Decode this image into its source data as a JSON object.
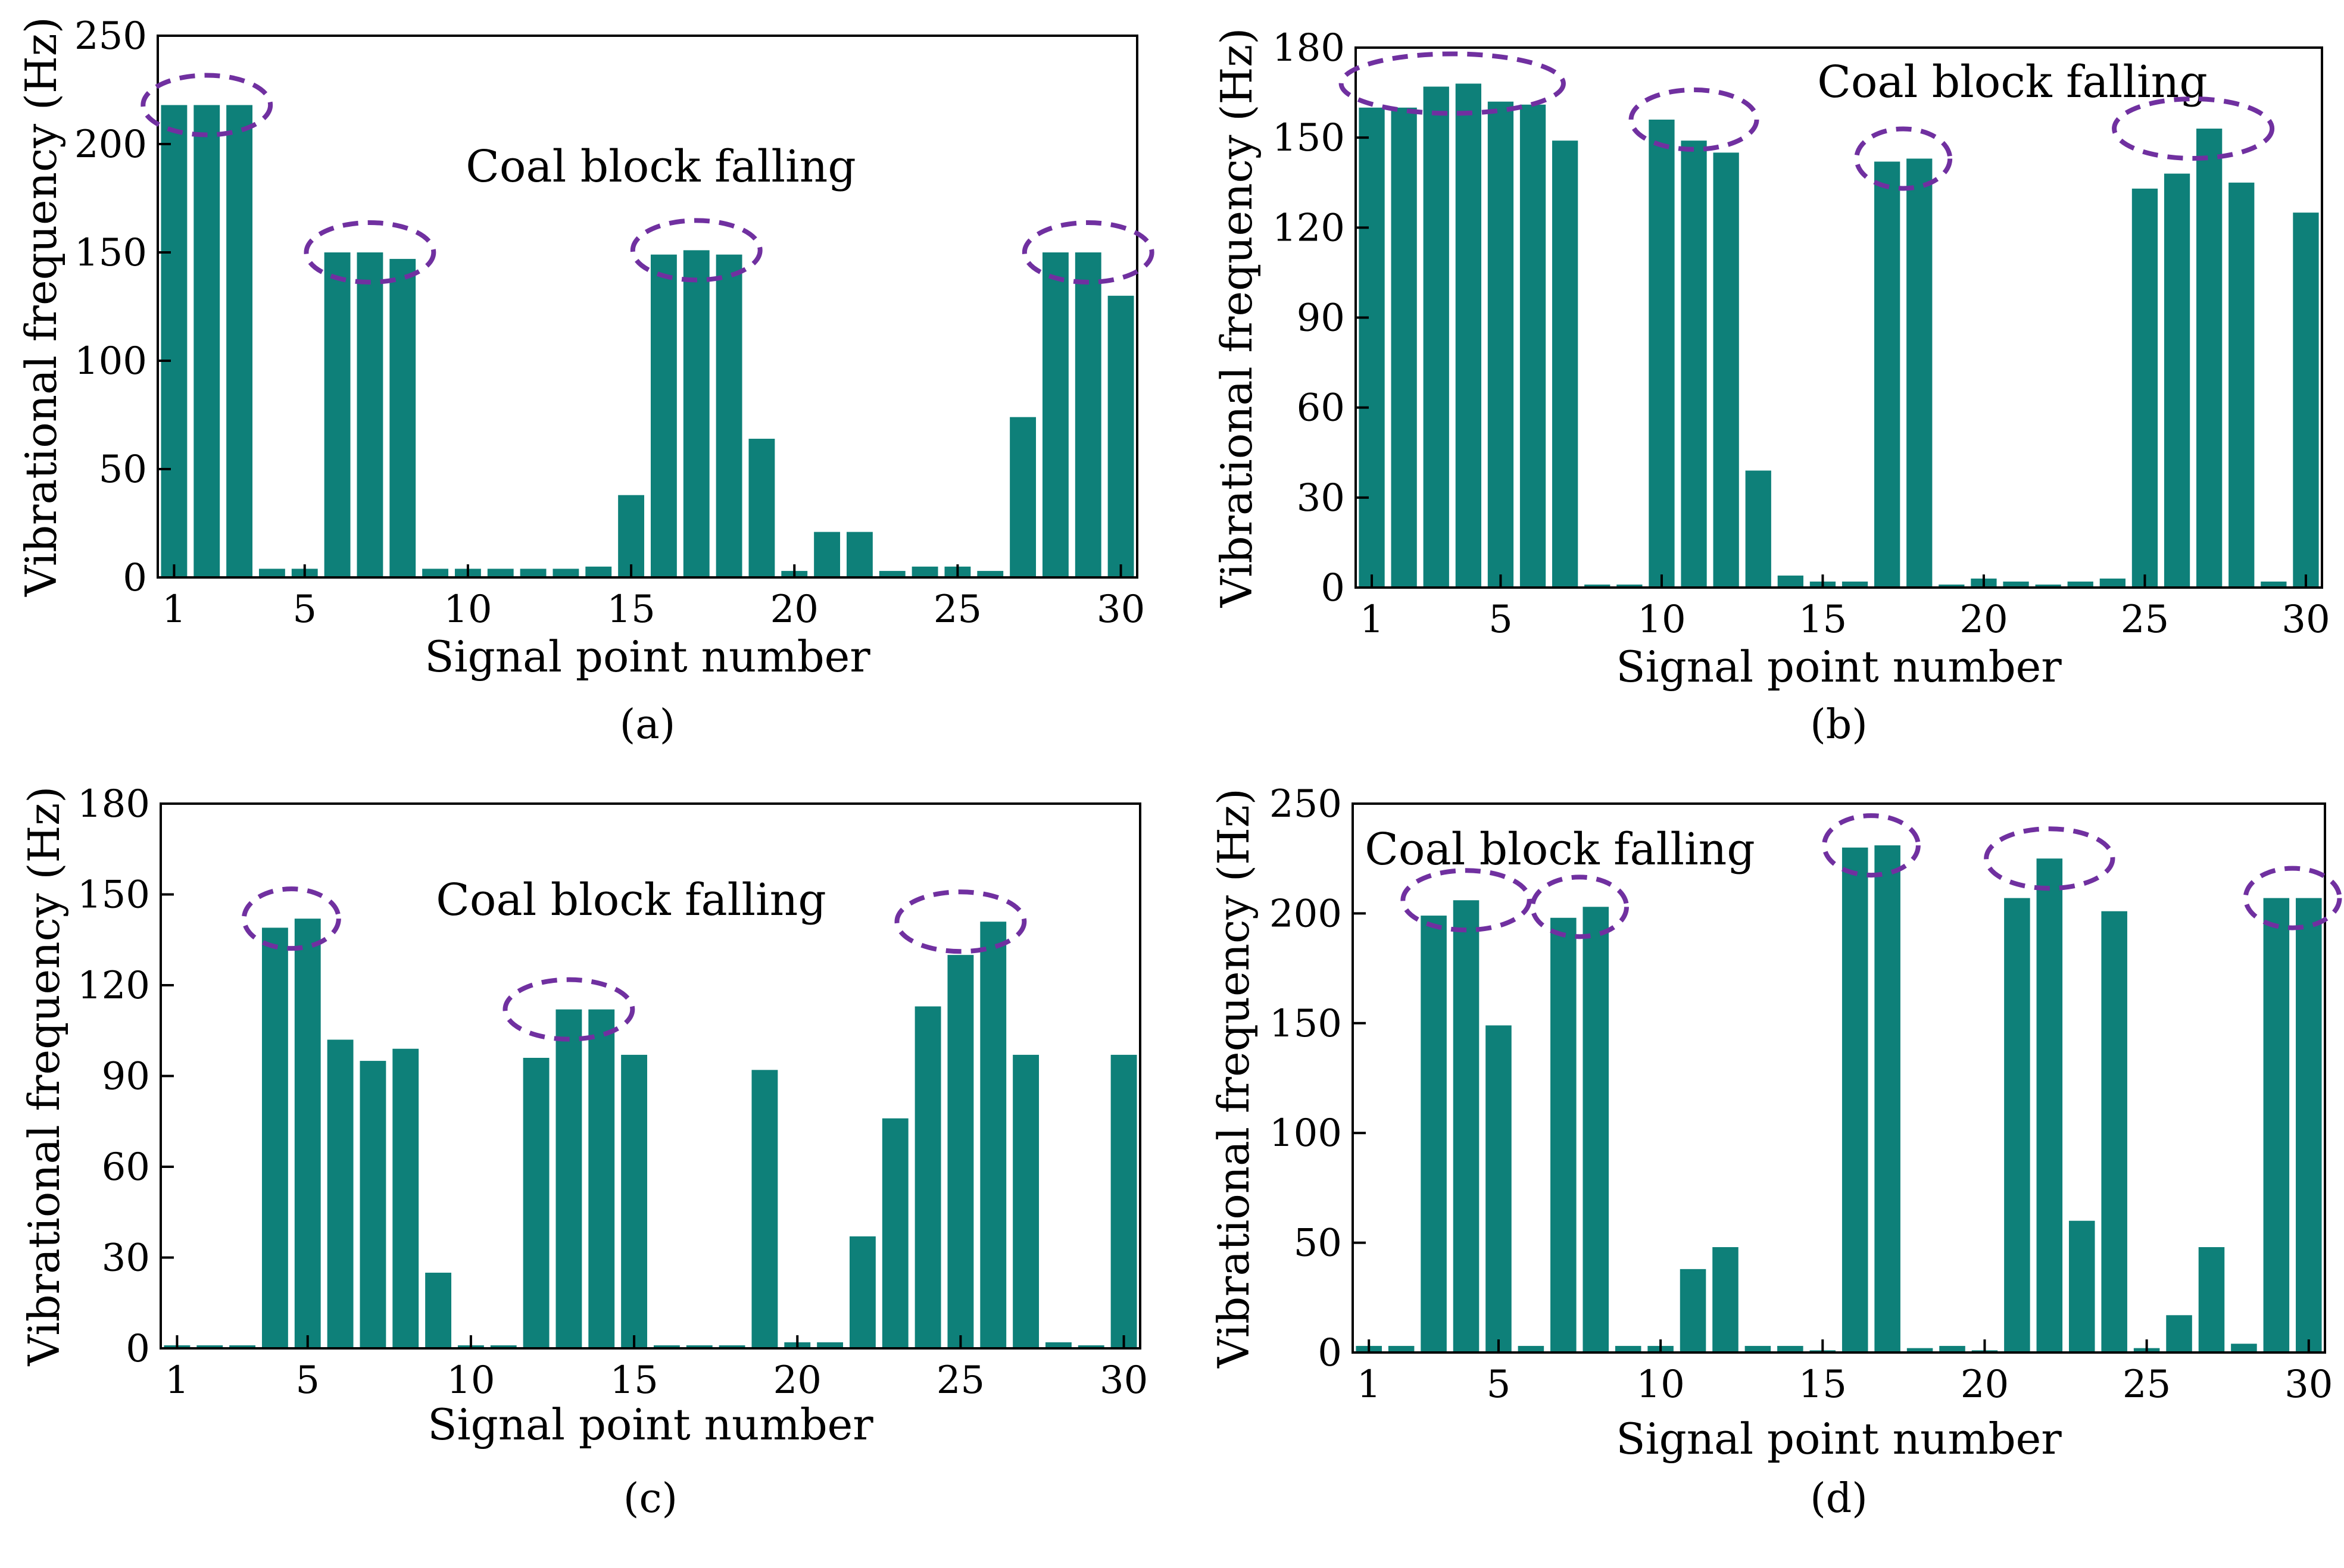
{
  "colors": {
    "bar": "#0e8079",
    "ellipse": "#7030a0",
    "axis": "#000000"
  },
  "chart_data": [
    {
      "panel": "(a)",
      "type": "bar",
      "title": "",
      "xlabel": "Signal point number",
      "ylabel": "Vibrational frequency (Hz)",
      "annotation": "Coal block falling",
      "x": [
        1,
        2,
        3,
        4,
        5,
        6,
        7,
        8,
        9,
        10,
        11,
        12,
        13,
        14,
        15,
        16,
        17,
        18,
        19,
        20,
        21,
        22,
        23,
        24,
        25,
        26,
        27,
        28,
        29,
        30
      ],
      "values": [
        218,
        218,
        218,
        4,
        4,
        150,
        150,
        147,
        4,
        4,
        4,
        4,
        4,
        5,
        38,
        149,
        151,
        149,
        64,
        3,
        21,
        21,
        3,
        5,
        5,
        3,
        74,
        150,
        150,
        130
      ],
      "ylim": [
        0,
        250
      ],
      "yticks": [
        0,
        50,
        100,
        150,
        200,
        250
      ],
      "xticks": [
        1,
        5,
        10,
        15,
        20,
        25,
        30
      ],
      "highlight_groups": [
        [
          1,
          3
        ],
        [
          6,
          8
        ],
        [
          16,
          18
        ],
        [
          28,
          30
        ]
      ]
    },
    {
      "panel": "(b)",
      "type": "bar",
      "title": "",
      "xlabel": "Signal point number",
      "ylabel": "Vibrational frequency (Hz)",
      "annotation": "Coal block falling",
      "x": [
        1,
        2,
        3,
        4,
        5,
        6,
        7,
        8,
        9,
        10,
        11,
        12,
        13,
        14,
        15,
        16,
        17,
        18,
        19,
        20,
        21,
        22,
        23,
        24,
        25,
        26,
        27,
        28,
        29,
        30
      ],
      "values": [
        160,
        160,
        167,
        168,
        162,
        161,
        149,
        1,
        1,
        156,
        149,
        145,
        39,
        4,
        2,
        2,
        142,
        143,
        1,
        3,
        2,
        1,
        2,
        3,
        133,
        138,
        153,
        135,
        2,
        125
      ],
      "ylim": [
        0,
        180
      ],
      "yticks": [
        0,
        30,
        60,
        90,
        120,
        150,
        180
      ],
      "xticks": [
        1,
        5,
        10,
        15,
        20,
        25,
        30
      ],
      "highlight_groups": [
        [
          1,
          6
        ],
        [
          10,
          12
        ],
        [
          17,
          18
        ],
        [
          25,
          28
        ]
      ]
    },
    {
      "panel": "(c)",
      "type": "bar",
      "title": "",
      "xlabel": "Signal point number",
      "ylabel": "Vibrational frequency (Hz)",
      "annotation": "Coal block falling",
      "x": [
        1,
        2,
        3,
        4,
        5,
        6,
        7,
        8,
        9,
        10,
        11,
        12,
        13,
        14,
        15,
        16,
        17,
        18,
        19,
        20,
        21,
        22,
        23,
        24,
        25,
        26,
        27,
        28,
        29,
        30
      ],
      "values": [
        1,
        1,
        1,
        139,
        142,
        102,
        95,
        99,
        25,
        1,
        1,
        96,
        112,
        112,
        97,
        1,
        1,
        1,
        92,
        2,
        2,
        37,
        76,
        113,
        130,
        141,
        97,
        2,
        1,
        97
      ],
      "ylim": [
        0,
        180
      ],
      "yticks": [
        0,
        30,
        60,
        90,
        120,
        150,
        180
      ],
      "xticks": [
        1,
        5,
        10,
        15,
        20,
        25,
        30
      ],
      "highlight_groups": [
        [
          4,
          5
        ],
        [
          12,
          14
        ],
        [
          24,
          26
        ]
      ]
    },
    {
      "panel": "(d)",
      "type": "bar",
      "title": "",
      "xlabel": "Signal point number",
      "ylabel": "Vibrational frequency (Hz)",
      "annotation": "Coal block falling",
      "x": [
        1,
        2,
        3,
        4,
        5,
        6,
        7,
        8,
        9,
        10,
        11,
        12,
        13,
        14,
        15,
        16,
        17,
        18,
        19,
        20,
        21,
        22,
        23,
        24,
        25,
        26,
        27,
        28,
        29,
        30
      ],
      "values": [
        3,
        3,
        199,
        206,
        149,
        3,
        198,
        203,
        3,
        3,
        38,
        48,
        3,
        3,
        1,
        230,
        231,
        2,
        3,
        1,
        207,
        225,
        60,
        201,
        2,
        17,
        48,
        4,
        207,
        207
      ],
      "ylim": [
        0,
        250
      ],
      "yticks": [
        0,
        50,
        100,
        150,
        200,
        250
      ],
      "xticks": [
        1,
        5,
        10,
        15,
        20,
        25,
        30
      ],
      "highlight_groups": [
        [
          3,
          5
        ],
        [
          7,
          8
        ],
        [
          16,
          17
        ],
        [
          21,
          23
        ],
        [
          29,
          30
        ]
      ]
    }
  ]
}
